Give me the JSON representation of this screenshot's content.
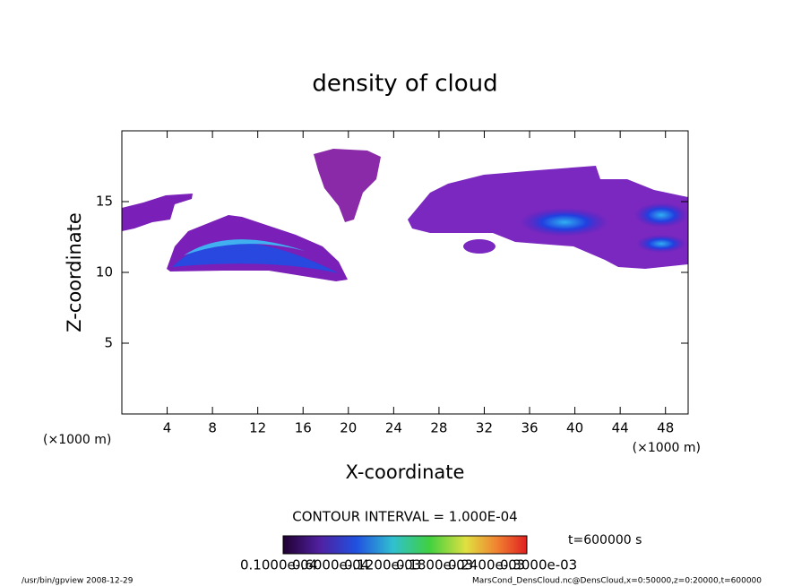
{
  "chart_data": {
    "type": "contour",
    "title": "density of cloud",
    "xlabel": "X-coordinate",
    "ylabel": "Z-coordinate",
    "x_unit": "(×1000 m)",
    "y_unit": "(×1000 m)",
    "xlim": [
      0,
      50
    ],
    "ylim": [
      0,
      20
    ],
    "xticks": [
      4,
      8,
      12,
      16,
      20,
      24,
      28,
      32,
      36,
      40,
      44,
      48
    ],
    "yticks": [
      5,
      10,
      15
    ],
    "contour_interval": "CONTOUR INTERVAL = 1.000E-04",
    "time": "t=600000 s",
    "colorbar_labels": [
      "0.1000e-04",
      "0.6000e-04",
      "0.1200e-03",
      "0.1800e-03",
      "0.2400e-03",
      "0.3000e-03"
    ],
    "footer_left": "/usr/bin/gpview  2008-12-29",
    "footer_right": "MarsCond_DensCloud.nc@DensCloud,x=0:50000,z=0:20000,t=600000"
  }
}
